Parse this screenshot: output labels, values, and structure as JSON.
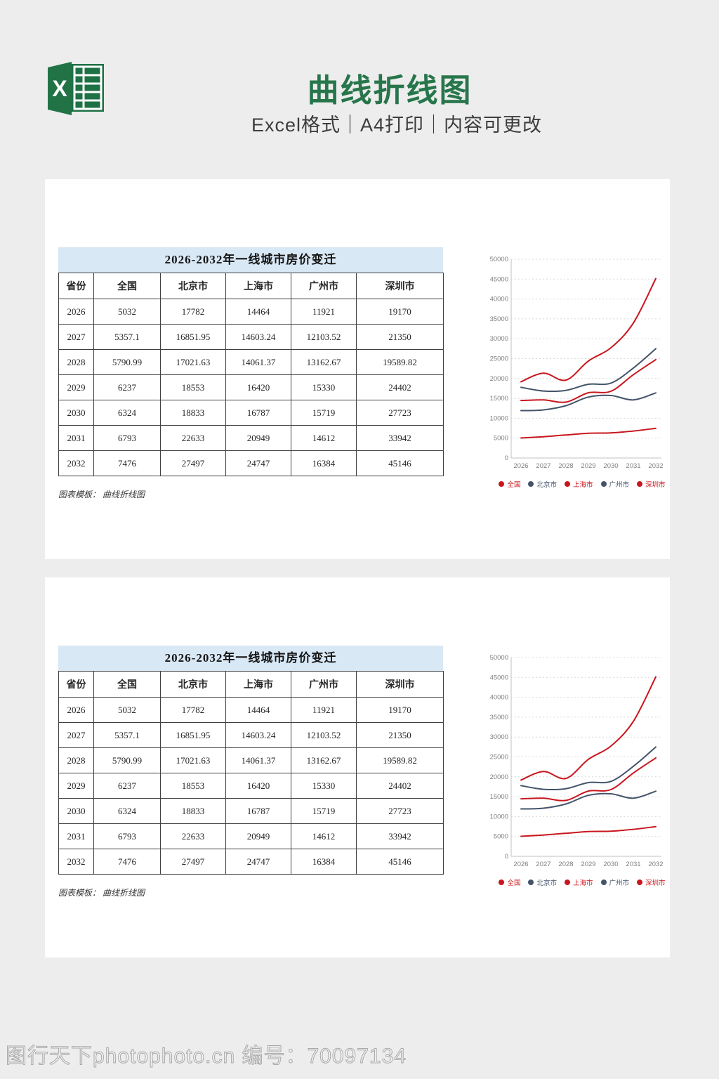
{
  "header": {
    "title": "曲线折线图",
    "subtitle": "Excel格式｜A4打印｜内容可更改",
    "logo_letter": "X"
  },
  "table": {
    "title": "2026-2032年一线城市房价变迁",
    "columns": [
      "省份",
      "全国",
      "北京市",
      "上海市",
      "广州市",
      "深圳市"
    ],
    "rows": [
      [
        "2026",
        "5032",
        "17782",
        "14464",
        "11921",
        "19170"
      ],
      [
        "2027",
        "5357.1",
        "16851.95",
        "14603.24",
        "12103.52",
        "21350"
      ],
      [
        "2028",
        "5790.99",
        "17021.63",
        "14061.37",
        "13162.67",
        "19589.82"
      ],
      [
        "2029",
        "6237",
        "18553",
        "16420",
        "15330",
        "24402"
      ],
      [
        "2030",
        "6324",
        "18833",
        "16787",
        "15719",
        "27723"
      ],
      [
        "2031",
        "6793",
        "22633",
        "20949",
        "14612",
        "33942"
      ],
      [
        "2032",
        "7476",
        "27497",
        "24747",
        "16384",
        "45146"
      ]
    ],
    "note": "图表模板： 曲线折线图"
  },
  "chart_data": {
    "type": "line",
    "line_style": "smooth",
    "categories": [
      "2026",
      "2027",
      "2028",
      "2029",
      "2030",
      "2031",
      "2032"
    ],
    "series": [
      {
        "name": "全国",
        "color": "#c9161e",
        "values": [
          5032,
          5357.1,
          5790.99,
          6237,
          6324,
          6793,
          7476
        ]
      },
      {
        "name": "北京市",
        "color": "#44546a",
        "values": [
          17782,
          16851.95,
          17021.63,
          18553,
          18833,
          22633,
          27497
        ]
      },
      {
        "name": "上海市",
        "color": "#c9161e",
        "values": [
          14464,
          14603.24,
          14061.37,
          16420,
          16787,
          20949,
          24747
        ]
      },
      {
        "name": "广州市",
        "color": "#44546a",
        "values": [
          11921,
          12103.52,
          13162.67,
          15330,
          15719,
          14612,
          16384
        ]
      },
      {
        "name": "深圳市",
        "color": "#c9161e",
        "values": [
          19170,
          21350,
          19589.82,
          24402,
          27723,
          33942,
          45146
        ]
      }
    ],
    "ylim": [
      0,
      50000
    ],
    "ytick_step": 5000,
    "grid": "horizontal-dashed",
    "legend_position": "bottom"
  },
  "colors": {
    "accent_green": "#27764b",
    "logo_green": "#1e7145",
    "series_red": "#c9161e",
    "series_dark": "#44546a",
    "table_title_bg": "#d9e8f5",
    "gridline": "#d9d9d9",
    "axis_line": "#c0c0c0",
    "tick_text": "#808080",
    "page_bg": "#ededed"
  },
  "watermark": "图行天下photophoto.cn 编号：70097134"
}
